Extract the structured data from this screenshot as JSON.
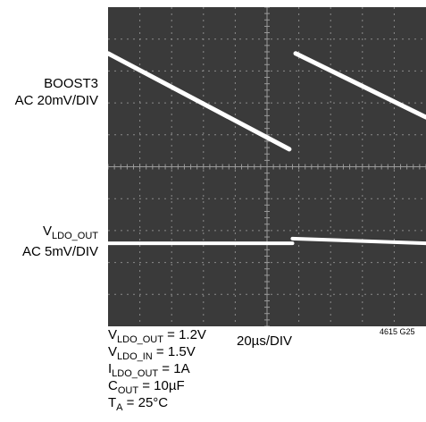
{
  "chart_data": {
    "type": "line",
    "x_scale_label": "20µs/DIV",
    "grid": true,
    "x_divisions": 10,
    "y_divisions": 10,
    "series": [
      {
        "name": "BOOST3",
        "scale_label": "AC 20mV/DIV",
        "segments": [
          [
            [
              0.0,
              8.55
            ],
            [
              5.7,
              5.55
            ]
          ],
          [
            [
              5.9,
              8.55
            ],
            [
              10.0,
              6.55
            ]
          ]
        ]
      },
      {
        "name": "VLDO_OUT",
        "scale_label": "AC 5mV/DIV",
        "segments": [
          [
            [
              0.0,
              2.6
            ],
            [
              5.8,
              2.6
            ]
          ],
          [
            [
              5.8,
              2.75
            ],
            [
              10.0,
              2.6
            ]
          ]
        ]
      }
    ],
    "conditions": [
      {
        "main": "V",
        "sub": "LDO_OUT",
        "rest": " = 1.2V"
      },
      {
        "main": "V",
        "sub": "LDO_IN",
        "rest": " = 1.5V"
      },
      {
        "main": "I",
        "sub": "LDO_OUT",
        "rest": " = 1A"
      },
      {
        "main": "C",
        "sub": "OUT",
        "rest": " = 10µF"
      },
      {
        "main": "T",
        "sub": "A",
        "rest": " = 25°C"
      }
    ],
    "figure_id": "4615 G25"
  },
  "labels": {
    "boost3_name": "BOOST3",
    "boost3_scale": "AC 20mV/DIV",
    "vldo_main": "V",
    "vldo_sub": "LDO_OUT",
    "vldo_scale": "AC 5mV/DIV"
  },
  "colors": {
    "trace": "#ffffff",
    "grid": "#8a8a8a",
    "screen": "#3a3a3a"
  }
}
